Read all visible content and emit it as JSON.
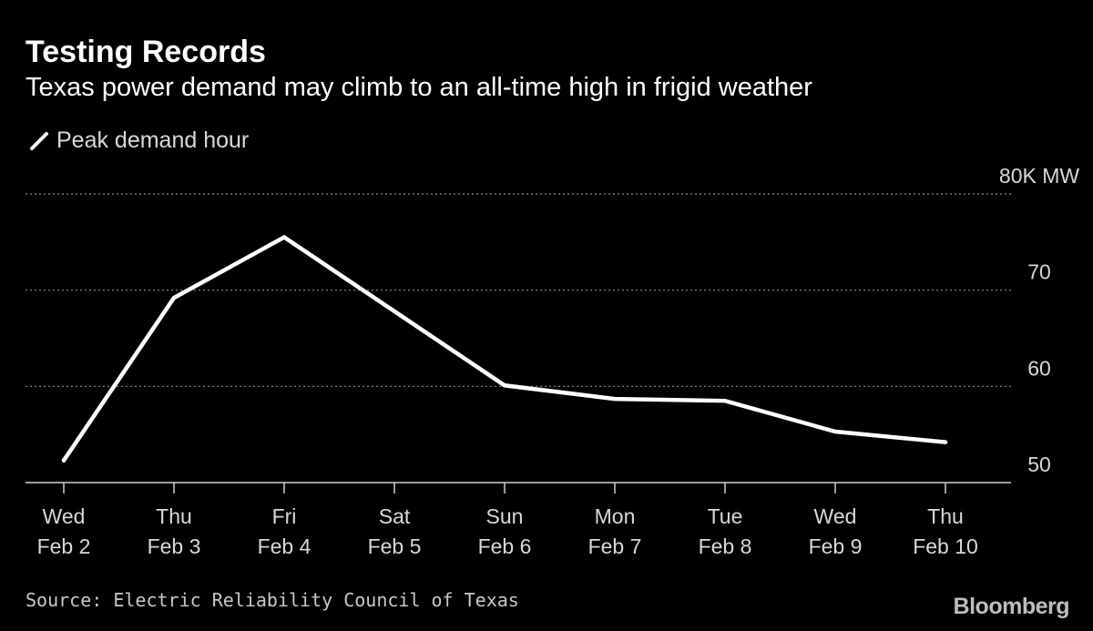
{
  "header": {
    "title": "Testing Records",
    "subtitle": "Texas power demand may climb to an all-time high in frigid weather"
  },
  "legend": {
    "label": "Peak demand hour"
  },
  "footer": {
    "source": "Source: Electric Reliability Council of Texas",
    "brand": "Bloomberg"
  },
  "colors": {
    "background": "#000000",
    "line": "#ffffff",
    "grid": "#8a8a8a",
    "text": "#d8d8d8"
  },
  "chart_data": {
    "type": "line",
    "categories": [
      [
        "Wed",
        "Feb 2"
      ],
      [
        "Thu",
        "Feb 3"
      ],
      [
        "Fri",
        "Feb 4"
      ],
      [
        "Sat",
        "Feb 5"
      ],
      [
        "Sun",
        "Feb 6"
      ],
      [
        "Mon",
        "Feb 7"
      ],
      [
        "Tue",
        "Feb 8"
      ],
      [
        "Wed",
        "Feb 9"
      ],
      [
        "Thu",
        "Feb 10"
      ]
    ],
    "series": [
      {
        "name": "Peak demand hour",
        "values": [
          52.3,
          69.2,
          75.5,
          67.8,
          60.1,
          58.7,
          58.5,
          55.3,
          54.2
        ],
        "color": "#ffffff"
      }
    ],
    "xlabel": "",
    "ylabel": "",
    "ylim": [
      50,
      80
    ],
    "yticks": [
      {
        "value": 80,
        "label": "80K MW"
      },
      {
        "value": 70,
        "label": "70"
      },
      {
        "value": 60,
        "label": "60"
      },
      {
        "value": 50,
        "label": "50"
      }
    ],
    "grid": "horizontal dotted",
    "legend_position": "top-left"
  }
}
